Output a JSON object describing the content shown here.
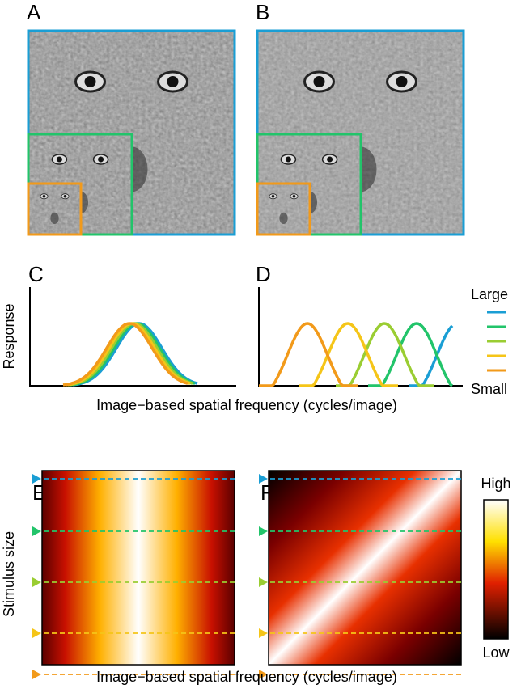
{
  "panels": {
    "a": "A",
    "b": "B",
    "c": "C",
    "d": "D",
    "e": "E",
    "f": "F"
  },
  "curves": {
    "y_label": "Response",
    "x_label": "Image−based spatial frequency (cycles/image)",
    "legend": {
      "top": "Large",
      "bottom": "Small"
    }
  },
  "heatmaps": {
    "y_label": "Stimulus size",
    "x_label": "Image−based spatial frequency (cycles/image)",
    "colorbar": {
      "top": "High",
      "bottom": "Low"
    }
  }
}
